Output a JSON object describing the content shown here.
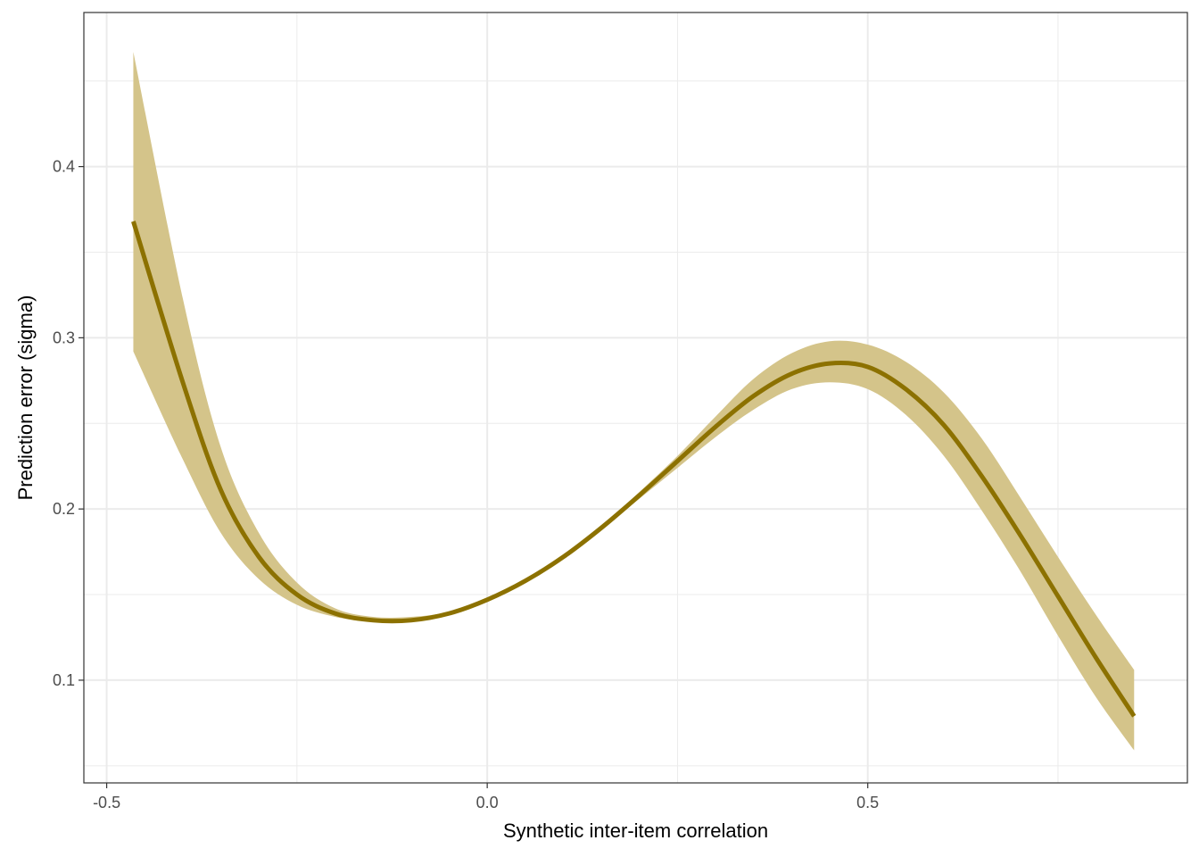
{
  "chart_data": {
    "type": "line",
    "title": "",
    "xlabel": "Synthetic inter-item correlation",
    "ylabel": "Prediction error (sigma)",
    "xlim": [
      -0.53,
      0.92
    ],
    "ylim": [
      0.04,
      0.49
    ],
    "x_ticks": [
      -0.5,
      0.0,
      0.5
    ],
    "x_tick_labels": [
      "-0.5",
      "0.0",
      "0.5"
    ],
    "x_minor_ticks": [
      -0.25,
      0.25,
      0.75
    ],
    "y_ticks": [
      0.1,
      0.2,
      0.3,
      0.4
    ],
    "y_tick_labels": [
      "0.1",
      "0.2",
      "0.3",
      "0.4"
    ],
    "y_minor_ticks": [
      0.05,
      0.15,
      0.25,
      0.35,
      0.45
    ],
    "grid": true,
    "colors": {
      "line": "#8c7100",
      "band": "#d4c48a",
      "panel_border": "#333333",
      "grid": "#ebebeb"
    },
    "series": [
      {
        "x": [
          -0.465,
          -0.4,
          -0.35,
          -0.3,
          -0.25,
          -0.2,
          -0.15,
          -0.1,
          -0.05,
          0.0,
          0.05,
          0.1,
          0.15,
          0.2,
          0.25,
          0.3,
          0.35,
          0.4,
          0.45,
          0.5,
          0.55,
          0.6,
          0.65,
          0.7,
          0.75,
          0.8,
          0.85
        ],
        "y": [
          0.368,
          0.274,
          0.211,
          0.172,
          0.15,
          0.139,
          0.135,
          0.135,
          0.139,
          0.147,
          0.158,
          0.172,
          0.189,
          0.208,
          0.228,
          0.248,
          0.266,
          0.279,
          0.285,
          0.283,
          0.27,
          0.249,
          0.219,
          0.185,
          0.149,
          0.113,
          0.079
        ],
        "lower": [
          0.292,
          0.229,
          0.186,
          0.159,
          0.144,
          0.137,
          0.134,
          0.134,
          0.138,
          0.146,
          0.157,
          0.171,
          0.188,
          0.206,
          0.224,
          0.242,
          0.258,
          0.27,
          0.274,
          0.27,
          0.255,
          0.231,
          0.199,
          0.164,
          0.126,
          0.09,
          0.059
        ],
        "upper": [
          0.467,
          0.323,
          0.236,
          0.186,
          0.157,
          0.142,
          0.137,
          0.137,
          0.14,
          0.148,
          0.159,
          0.173,
          0.19,
          0.21,
          0.231,
          0.254,
          0.276,
          0.291,
          0.298,
          0.296,
          0.286,
          0.268,
          0.241,
          0.207,
          0.172,
          0.138,
          0.106
        ]
      }
    ]
  }
}
